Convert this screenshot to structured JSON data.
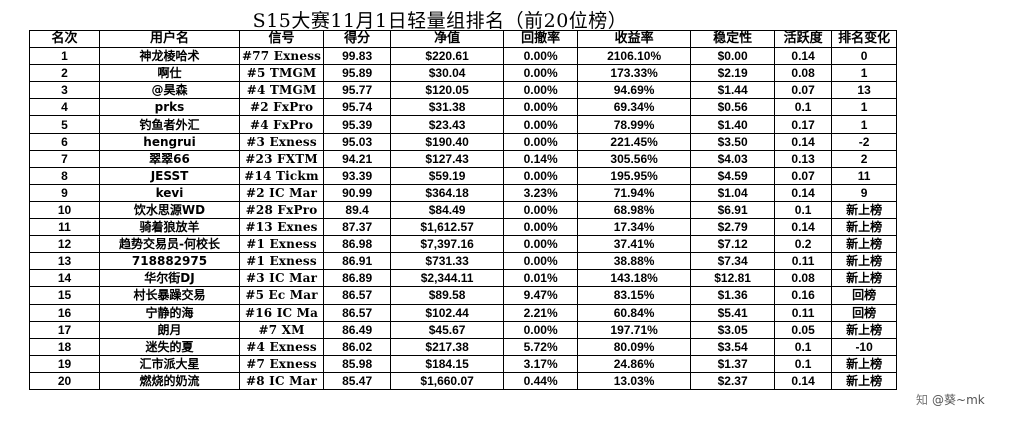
{
  "title": "S15大赛11月1日轻量组排名（前20位榜）",
  "columns": [
    "名次",
    "用户名",
    "信号",
    "得分",
    "净值",
    "回撤率",
    "收益率",
    "稳定性",
    "活跃度",
    "排名变化"
  ],
  "rows": [
    {
      "rank": "1",
      "user": "神龙棱哈术",
      "signal": "#77 Exness",
      "score": "99.83",
      "equity": "$220.61",
      "drawdown": "0.00%",
      "return": "2106.10%",
      "stability": "$0.00",
      "activity": "0.14",
      "change": "0"
    },
    {
      "rank": "2",
      "user": "啊仕",
      "signal": "#5 TMGM",
      "score": "95.89",
      "equity": "$30.04",
      "drawdown": "0.00%",
      "return": "173.33%",
      "stability": "$2.19",
      "activity": "0.08",
      "change": "1"
    },
    {
      "rank": "3",
      "user": "@昊森",
      "signal": "#4 TMGM",
      "score": "95.77",
      "equity": "$120.05",
      "drawdown": "0.00%",
      "return": "94.69%",
      "stability": "$1.44",
      "activity": "0.07",
      "change": "13"
    },
    {
      "rank": "4",
      "user": "prks",
      "signal": "#2 FxPro",
      "score": "95.74",
      "equity": "$31.38",
      "drawdown": "0.00%",
      "return": "69.34%",
      "stability": "$0.56",
      "activity": "0.1",
      "change": "1"
    },
    {
      "rank": "5",
      "user": "钓鱼者外汇",
      "signal": "#4 FxPro",
      "score": "95.39",
      "equity": "$23.43",
      "drawdown": "0.00%",
      "return": "78.99%",
      "stability": "$1.40",
      "activity": "0.17",
      "change": "1"
    },
    {
      "rank": "6",
      "user": "hengrui",
      "signal": "#3 Exness",
      "score": "95.03",
      "equity": "$190.40",
      "drawdown": "0.00%",
      "return": "221.45%",
      "stability": "$3.50",
      "activity": "0.14",
      "change": "-2"
    },
    {
      "rank": "7",
      "user": "翠翠66",
      "signal": "#23 FXTM",
      "score": "94.21",
      "equity": "$127.43",
      "drawdown": "0.14%",
      "return": "305.56%",
      "stability": "$4.03",
      "activity": "0.13",
      "change": "2"
    },
    {
      "rank": "8",
      "user": "JESST",
      "signal": "#14 Tickm",
      "score": "93.39",
      "equity": "$59.19",
      "drawdown": "0.00%",
      "return": "195.95%",
      "stability": "$4.59",
      "activity": "0.07",
      "change": "11"
    },
    {
      "rank": "9",
      "user": "kevi",
      "signal": "#2 IC Mar",
      "score": "90.99",
      "equity": "$364.18",
      "drawdown": "3.23%",
      "return": "71.94%",
      "stability": "$1.04",
      "activity": "0.14",
      "change": "9"
    },
    {
      "rank": "10",
      "user": "饮水思源WD",
      "signal": "#28 FxPro",
      "score": "89.4",
      "equity": "$84.49",
      "drawdown": "0.00%",
      "return": "68.98%",
      "stability": "$6.91",
      "activity": "0.1",
      "change": "新上榜"
    },
    {
      "rank": "11",
      "user": "骑着狼放羊",
      "signal": "#13 Exnes",
      "score": "87.37",
      "equity": "$1,612.57",
      "drawdown": "0.00%",
      "return": "17.34%",
      "stability": "$2.79",
      "activity": "0.14",
      "change": "新上榜"
    },
    {
      "rank": "12",
      "user": "趋势交易员-何校长",
      "signal": "#1 Exness",
      "score": "86.98",
      "equity": "$7,397.16",
      "drawdown": "0.00%",
      "return": "37.41%",
      "stability": "$7.12",
      "activity": "0.2",
      "change": "新上榜"
    },
    {
      "rank": "13",
      "user": "718882975",
      "signal": "#1 Exness",
      "score": "86.91",
      "equity": "$731.33",
      "drawdown": "0.00%",
      "return": "38.88%",
      "stability": "$7.34",
      "activity": "0.11",
      "change": "新上榜"
    },
    {
      "rank": "14",
      "user": "华尔街DJ",
      "signal": "#3 IC Mar",
      "score": "86.89",
      "equity": "$2,344.11",
      "drawdown": "0.01%",
      "return": "143.18%",
      "stability": "$12.81",
      "activity": "0.08",
      "change": "新上榜"
    },
    {
      "rank": "15",
      "user": "村长暴躁交易",
      "signal": "#5 Ec Mar",
      "score": "86.57",
      "equity": "$89.58",
      "drawdown": "9.47%",
      "return": "83.15%",
      "stability": "$1.36",
      "activity": "0.16",
      "change": "回榜"
    },
    {
      "rank": "16",
      "user": "宁静的海",
      "signal": "#16 IC Ma",
      "score": "86.57",
      "equity": "$102.44",
      "drawdown": "2.21%",
      "return": "60.84%",
      "stability": "$5.41",
      "activity": "0.11",
      "change": "回榜"
    },
    {
      "rank": "17",
      "user": "朗月",
      "signal": "#7 XM",
      "score": "86.49",
      "equity": "$45.67",
      "drawdown": "0.00%",
      "return": "197.71%",
      "stability": "$3.05",
      "activity": "0.05",
      "change": "新上榜"
    },
    {
      "rank": "18",
      "user": "迷失的夏",
      "signal": "#4 Exness",
      "score": "86.02",
      "equity": "$217.38",
      "drawdown": "5.72%",
      "return": "80.09%",
      "stability": "$3.54",
      "activity": "0.1",
      "change": "-10"
    },
    {
      "rank": "19",
      "user": "汇市派大星",
      "signal": "#7 Exness",
      "score": "85.98",
      "equity": "$184.15",
      "drawdown": "3.17%",
      "return": "24.86%",
      "stability": "$1.37",
      "activity": "0.1",
      "change": "新上榜"
    },
    {
      "rank": "20",
      "user": "燃烧的奶流",
      "signal": "#8 IC Mar",
      "score": "85.47",
      "equity": "$1,660.07",
      "drawdown": "0.44%",
      "return": "13.03%",
      "stability": "$2.37",
      "activity": "0.14",
      "change": "新上榜"
    }
  ],
  "watermark": {
    "icon": "zhihu-icon",
    "glyph": "知",
    "text": "@葵~mk"
  }
}
